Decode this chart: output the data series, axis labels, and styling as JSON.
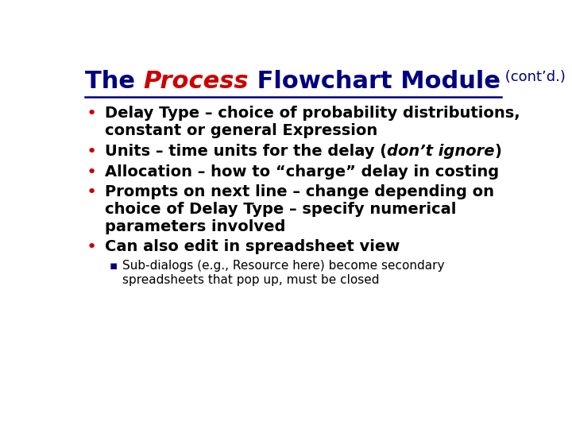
{
  "bg_color": "#ffffff",
  "title_parts": [
    {
      "text": "The ",
      "color": "#000080",
      "bold": true,
      "italic": false,
      "size": 22
    },
    {
      "text": "Process",
      "color": "#cc0000",
      "bold": true,
      "italic": true,
      "size": 22
    },
    {
      "text": " Flowchart Module",
      "color": "#000080",
      "bold": true,
      "italic": false,
      "size": 22
    },
    {
      "text": " (cont’d.)",
      "color": "#000080",
      "bold": false,
      "italic": false,
      "size": 13
    }
  ],
  "separator_color": "#000080",
  "bullet_color": "#cc0000",
  "sub_bullet_color": "#000080",
  "bullet_fontsize": 14,
  "sub_bullet_fontsize": 11,
  "bullets": [
    {
      "type": "main",
      "lines": [
        {
          "parts": [
            {
              "text": "Delay Type – choice of probability distributions,",
              "bold": true,
              "italic": false
            }
          ]
        },
        {
          "parts": [
            {
              "text": "constant or general Expression",
              "bold": true,
              "italic": false
            }
          ]
        }
      ]
    },
    {
      "type": "main",
      "lines": [
        {
          "parts": [
            {
              "text": "Units – time units for the delay (",
              "bold": true,
              "italic": false
            },
            {
              "text": "don’t ignore",
              "bold": true,
              "italic": true
            },
            {
              "text": ")",
              "bold": true,
              "italic": false
            }
          ]
        }
      ]
    },
    {
      "type": "main",
      "lines": [
        {
          "parts": [
            {
              "text": "Allocation – how to “charge” delay in costing",
              "bold": true,
              "italic": false
            }
          ]
        }
      ]
    },
    {
      "type": "main",
      "lines": [
        {
          "parts": [
            {
              "text": "Prompts on next line – change depending on",
              "bold": true,
              "italic": false
            }
          ]
        },
        {
          "parts": [
            {
              "text": "choice of Delay Type – specify numerical",
              "bold": true,
              "italic": false
            }
          ]
        },
        {
          "parts": [
            {
              "text": "parameters involved",
              "bold": true,
              "italic": false
            }
          ]
        }
      ]
    },
    {
      "type": "main",
      "lines": [
        {
          "parts": [
            {
              "text": "Can also edit in spreadsheet view",
              "bold": true,
              "italic": false
            }
          ]
        }
      ]
    },
    {
      "type": "sub",
      "lines": [
        {
          "parts": [
            {
              "text": "Sub-dialogs (e.g., Resource here) become secondary",
              "bold": false,
              "italic": false
            }
          ]
        },
        {
          "parts": [
            {
              "text": "spreadsheets that pop up, must be closed",
              "bold": false,
              "italic": false
            }
          ]
        }
      ]
    }
  ]
}
